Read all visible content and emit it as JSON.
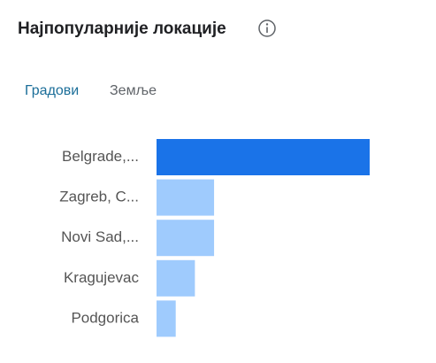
{
  "header": {
    "title": "Најпопуларније локације"
  },
  "tabs": [
    "Градови",
    "Земље"
  ],
  "chart_data": {
    "type": "bar",
    "orientation": "horizontal",
    "categories": [
      "Belgrade,...",
      "Zagreb, C...",
      "Novi Sad,...",
      "Kragujevac",
      "Podgorica"
    ],
    "values": [
      100,
      27,
      27,
      18,
      9
    ],
    "colors": [
      "#1a73e8",
      "#9fcbfd",
      "#9fcbfd",
      "#9fcbfd",
      "#9fcbfd"
    ]
  }
}
